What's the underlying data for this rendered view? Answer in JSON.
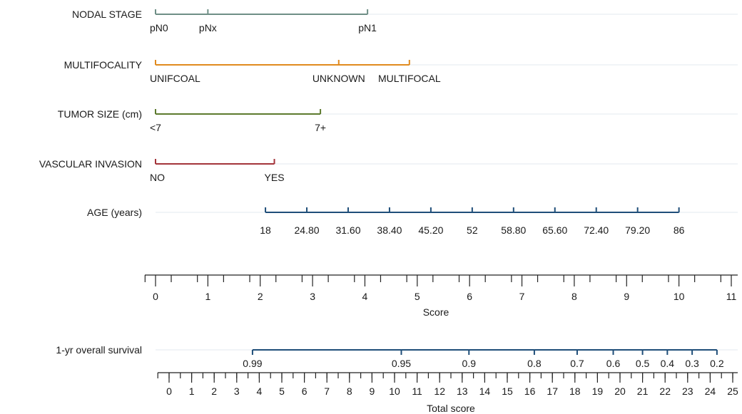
{
  "chart_data": {
    "type": "nomogram",
    "variables": [
      {
        "name": "NODAL STAGE",
        "color": "#6f8f86",
        "levels": [
          {
            "label": "pN0",
            "points": 0
          },
          {
            "label": "pNx",
            "points": 1
          },
          {
            "label": "pN1",
            "points": 4.05
          }
        ]
      },
      {
        "name": "MULTIFOCALITY",
        "color": "#e08a1e",
        "levels": [
          {
            "label": "UNIFCOAL",
            "points": 0
          },
          {
            "label": "UNKNOWN",
            "points": 3.5
          },
          {
            "label": "MULTIFOCAL",
            "points": 4.85
          }
        ]
      },
      {
        "name": "TUMOR SIZE (cm)",
        "color": "#5c7a2e",
        "levels": [
          {
            "label": "<7",
            "points": 0
          },
          {
            "label": "7+",
            "points": 3.15
          }
        ]
      },
      {
        "name": "VASCULAR INVASION",
        "color": "#a3343a",
        "levels": [
          {
            "label": "NO",
            "points": 0
          },
          {
            "label": "YES",
            "points": 2.27
          }
        ]
      },
      {
        "name": "AGE (years)",
        "color": "#1f4e79",
        "levels": [
          {
            "label": "18",
            "points": 2.1
          },
          {
            "label": "24.80",
            "points": 2.89
          },
          {
            "label": "31.60",
            "points": 3.68
          },
          {
            "label": "38.40",
            "points": 4.47
          },
          {
            "label": "45.20",
            "points": 5.26
          },
          {
            "label": "52",
            "points": 6.05
          },
          {
            "label": "58.80",
            "points": 6.84
          },
          {
            "label": "65.60",
            "points": 7.63
          },
          {
            "label": "72.40",
            "points": 8.42
          },
          {
            "label": "79.20",
            "points": 9.21
          },
          {
            "label": "86",
            "points": 10.0
          }
        ]
      }
    ],
    "score_axis": {
      "xlabel": "Score",
      "range": [
        0,
        11
      ],
      "major_ticks": [
        0,
        1,
        2,
        3,
        4,
        5,
        6,
        7,
        8,
        9,
        10,
        11
      ],
      "tick_labels": [
        "0",
        "1",
        "2",
        "3",
        "4",
        "5",
        "6",
        "7",
        "8",
        "9",
        "10",
        "11"
      ]
    },
    "survival": {
      "name": "1-yr overall survival",
      "color": "#1f4e79",
      "levels": [
        {
          "label": "0.99",
          "total": 3.7
        },
        {
          "label": "0.95",
          "total": 10.3
        },
        {
          "label": "0.9",
          "total": 13.3
        },
        {
          "label": "0.8",
          "total": 16.2
        },
        {
          "label": "0.7",
          "total": 18.1
        },
        {
          "label": "0.6",
          "total": 19.7
        },
        {
          "label": "0.5",
          "total": 21.0
        },
        {
          "label": "0.4",
          "total": 22.1
        },
        {
          "label": "0.3",
          "total": 23.2
        },
        {
          "label": "0.2",
          "total": 24.3
        }
      ]
    },
    "total_axis": {
      "xlabel": "Total score",
      "range": [
        0,
        25
      ],
      "major_ticks": [
        0,
        1,
        2,
        3,
        4,
        5,
        6,
        7,
        8,
        9,
        10,
        11,
        12,
        13,
        14,
        15,
        16,
        17,
        18,
        19,
        20,
        21,
        22,
        23,
        24,
        25
      ],
      "tick_labels": [
        "0",
        "1",
        "2",
        "3",
        "4",
        "5",
        "6",
        "7",
        "8",
        "9",
        "10",
        "11",
        "12",
        "13",
        "14",
        "15",
        "16",
        "17",
        "18",
        "19",
        "20",
        "21",
        "22",
        "23",
        "24",
        "25"
      ]
    },
    "grid": true
  }
}
